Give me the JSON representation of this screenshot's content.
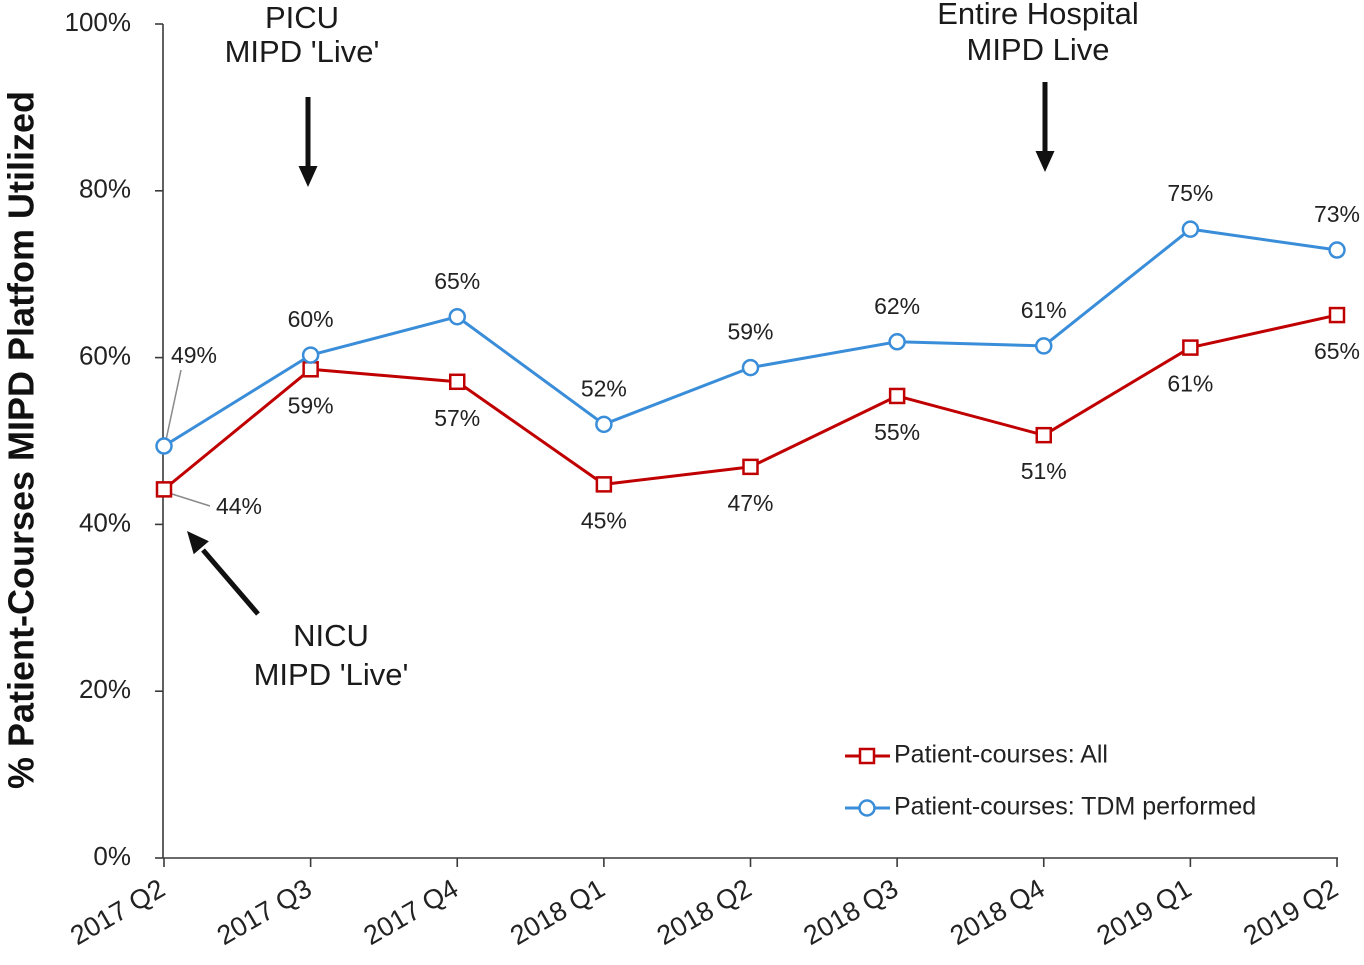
{
  "chart_data": {
    "type": "line",
    "title": "",
    "xlabel": "",
    "ylabel": "% Patient-Courses MIPD Platfom Utilized",
    "ylim": [
      0,
      100
    ],
    "y_ticks": [
      0,
      20,
      40,
      60,
      80,
      100
    ],
    "y_tick_labels": [
      "0%",
      "20%",
      "40%",
      "60%",
      "80%",
      "100%"
    ],
    "categories": [
      "2017 Q2",
      "2017 Q3",
      "2017 Q4",
      "2018 Q1",
      "2018 Q2",
      "2018 Q3",
      "2018 Q4",
      "2019 Q1",
      "2019 Q2"
    ],
    "series": [
      {
        "name": "Patient-courses: All",
        "color": "#C00000",
        "marker": "square",
        "values": [
          44.2,
          58.6,
          57.1,
          44.8,
          46.9,
          55.4,
          50.7,
          61.2,
          65.1
        ],
        "data_labels": [
          "44%",
          "59%",
          "57%",
          "45%",
          "47%",
          "55%",
          "51%",
          "61%",
          "65%"
        ]
      },
      {
        "name": "Patient-courses: TDM performed",
        "color": "#3A8DD8",
        "marker": "circle",
        "values": [
          49.4,
          60.3,
          64.9,
          52.0,
          58.8,
          61.9,
          61.4,
          75.4,
          72.9
        ],
        "data_labels": [
          "49%",
          "60%",
          "65%",
          "52%",
          "59%",
          "62%",
          "61%",
          "75%",
          "73%"
        ]
      }
    ],
    "grid": false,
    "legend": "lower-right",
    "annotations": [
      {
        "lines": [
          "PICU",
          "MIPD 'Live'"
        ]
      },
      {
        "lines": [
          "Entire Hospital",
          "MIPD Live"
        ]
      },
      {
        "lines": [
          "NICU",
          "MIPD 'Live'"
        ]
      }
    ]
  }
}
